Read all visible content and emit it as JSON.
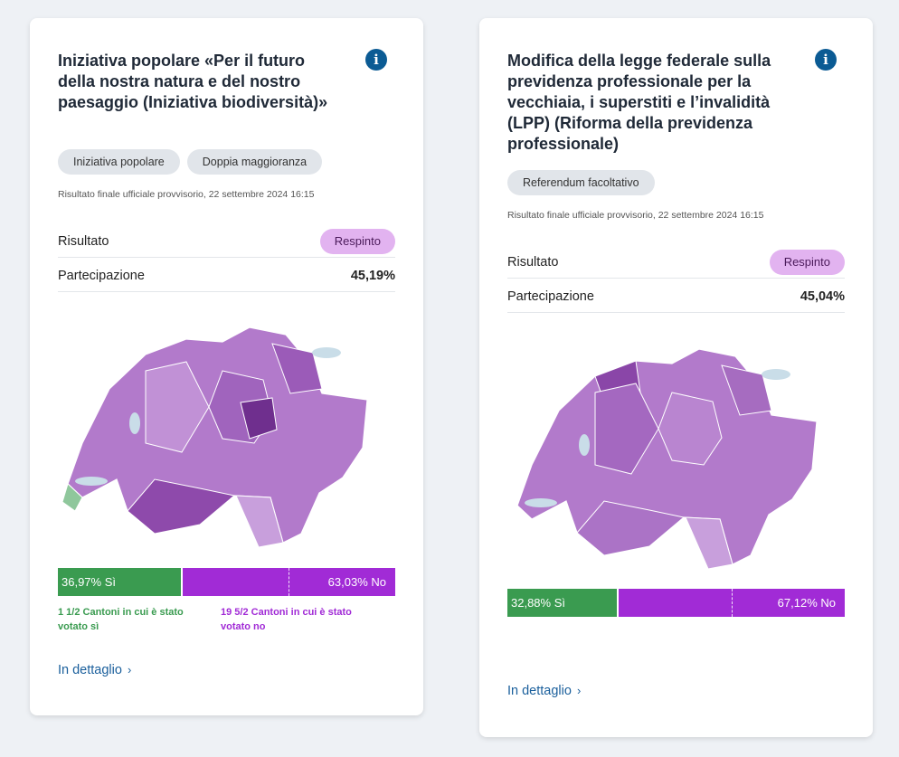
{
  "cards": [
    {
      "title": "Iniziativa popolare «Per il futuro della nostra natura e del nostro paesaggio (Iniziativa biodiversità)»",
      "tags": [
        "Iniziativa popolare",
        "Doppia maggioranza"
      ],
      "status": "Risultato finale ufficiale provvisorio, 22 settembre 2024 16:15",
      "result_label": "Risultato",
      "result_value": "Respinto",
      "turnout_label": "Partecipazione",
      "turnout_value": "45,19%",
      "yes_percent": 36.97,
      "yes_label": "36,97% Sì",
      "no_label": "63,03% No",
      "cantons_yes": "1 1/2 Cantoni in cui è stato votato sì",
      "cantons_no": "19 5/2 Cantoni in cui è stato votato no",
      "detail_link": "In dettaglio",
      "map_icon": "switzerland-canton-map"
    },
    {
      "title": "Modifica della legge federale sulla previdenza professionale per la vecchiaia, i superstiti e l’invalidità (LPP) (Riforma della previdenza professionale)",
      "tags": [
        "Referendum facoltativo"
      ],
      "status": "Risultato finale ufficiale provvisorio, 22 settembre 2024 16:15",
      "result_label": "Risultato",
      "result_value": "Respinto",
      "turnout_label": "Partecipazione",
      "turnout_value": "45,04%",
      "yes_percent": 32.88,
      "yes_label": "32,88% Sì",
      "no_label": "67,12% No",
      "detail_link": "In dettaglio",
      "map_icon": "switzerland-canton-map"
    }
  ],
  "colors": {
    "yes": "#3a9b50",
    "no": "#a12bd6",
    "badge": "#e2b3f0",
    "info": "#0b5b94",
    "link": "#1a5f9c"
  }
}
